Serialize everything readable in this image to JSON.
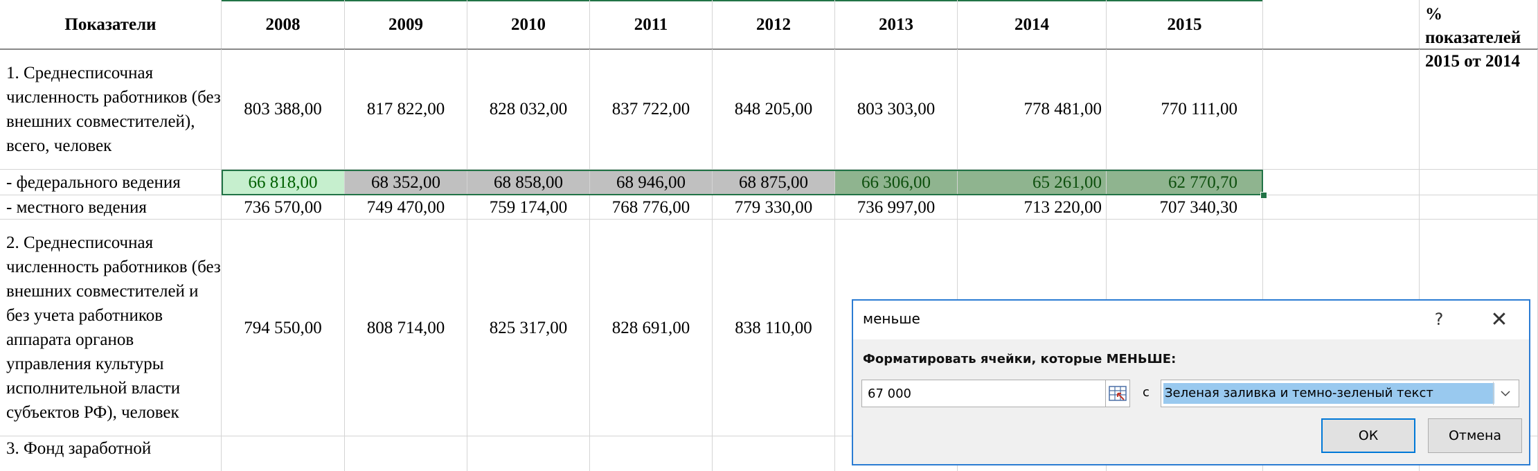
{
  "table": {
    "headers": [
      "Показатели",
      "2008",
      "2009",
      "2010",
      "2011",
      "2012",
      "2013",
      "2014",
      "2015",
      "",
      "% показателей 2015 от 2014"
    ],
    "rows": [
      {
        "label": "1. Среднесписочная численность работников (без внешних совместителей), всего, человек",
        "values": [
          "803 388,00",
          "817 822,00",
          "828 032,00",
          "837 722,00",
          "848 205,00",
          "803 303,00",
          "778 481,00",
          "770 111,00"
        ]
      },
      {
        "label": "- федерального ведения",
        "values": [
          "66 818,00",
          "68 352,00",
          "68 858,00",
          "68 946,00",
          "68 875,00",
          "66 306,00",
          "65 261,00",
          "62 770,70"
        ]
      },
      {
        "label": "- местного ведения",
        "values": [
          "736 570,00",
          "749 470,00",
          "759 174,00",
          "768 776,00",
          "779 330,00",
          "736 997,00",
          "713 220,00",
          "707 340,30"
        ]
      },
      {
        "label": "2. Среднесписочная численность работников (без внешних совместителей и без учета работников аппарата органов управления культуры исполнительной власти субъектов РФ), человек",
        "values": [
          "794 550,00",
          "808 714,00",
          "825 317,00",
          "828 691,00",
          "838 110,00",
          "",
          "",
          ""
        ]
      },
      {
        "label": "3. Фонд заработной",
        "values": [
          "",
          "",
          "",
          "",
          "",
          "",
          "",
          ""
        ]
      }
    ]
  },
  "dialog": {
    "title": "меньше",
    "help_label": "?",
    "close_label": "✕",
    "prompt": "Форматировать ячейки, которые МЕНЬШЕ:",
    "value": "67 000",
    "with_label": "с",
    "format_option": "Зеленая заливка и темно-зеленый текст",
    "ok_label": "ОК",
    "cancel_label": "Отмена"
  },
  "colors": {
    "highlight_fill": "#c6efce",
    "highlight_text": "#006100",
    "selection_border": "#217346",
    "dialog_border": "#2b7cd3"
  }
}
